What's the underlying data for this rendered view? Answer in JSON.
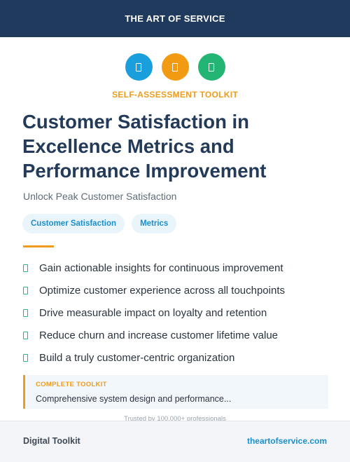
{
  "header": {
    "brand": "THE ART OF SERVICE"
  },
  "icons": [
    {
      "name": "document-icon",
      "color": "#1a9fdc"
    },
    {
      "name": "document-icon",
      "color": "#f29a12"
    },
    {
      "name": "document-icon",
      "color": "#22b573"
    }
  ],
  "hero": {
    "eyebrow": "SELF-ASSESSMENT TOOLKIT",
    "title": "Customer Satisfaction in Excellence Metrics and Performance Improvement",
    "subtitle": "Unlock Peak Customer Satisfaction",
    "tags": [
      "Customer Satisfaction",
      "Metrics"
    ]
  },
  "benefits": [
    "Gain actionable insights for continuous improvement",
    "Optimize customer experience across all touchpoints",
    "Drive measurable impact on loyalty and retention",
    "Reduce churn and increase customer lifetime value",
    "Build a truly customer-centric organization"
  ],
  "callout": {
    "label": "COMPLETE TOOLKIT",
    "text": "Comprehensive system design and performance..."
  },
  "trust": "Trusted by 100,000+ professionals",
  "footer": {
    "left": "Digital Toolkit",
    "right": "theartofservice.com"
  },
  "colors": {
    "header_bg": "#1f3a5c",
    "accent_orange": "#ee9c1c",
    "link_blue": "#1a8fcf",
    "check_green": "#22b573"
  }
}
